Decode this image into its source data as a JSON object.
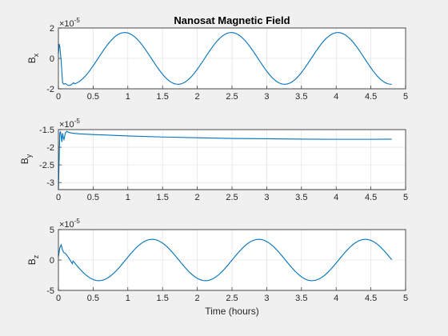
{
  "colors": {
    "background": "#f0f0f0",
    "axes_bg": "#ffffff",
    "line": "#0072bd",
    "grid": "#dcdcdc"
  },
  "chart_data": [
    {
      "type": "line",
      "title": "Nanosat Magnetic Field",
      "ylabel": "B",
      "ylabel_sub": "x",
      "xlabel": "",
      "exponent_label": "×10",
      "exponent": "-5",
      "xlim": [
        0,
        5
      ],
      "ylim": [
        -2,
        2
      ],
      "xticks": [
        "0",
        "0.5",
        "1",
        "1.5",
        "2",
        "2.5",
        "3",
        "3.5",
        "4",
        "4.5",
        "5"
      ],
      "yticks": [
        "2",
        "0",
        "-2"
      ],
      "grid": true,
      "legend": false,
      "transient": {
        "t": [
          0,
          0.01,
          0.02,
          0.04,
          0.06,
          0.08,
          0.1,
          0.14,
          0.18,
          0.22
        ],
        "y": [
          0.3,
          0.95,
          0.8,
          -0.2,
          -1.6,
          -1.7,
          -1.65,
          -1.78,
          -1.75,
          -1.6
        ]
      },
      "oscillation": {
        "amplitude": 1.7,
        "period_hours": 1.535,
        "peak_hours": 0.955,
        "t_start": 0.22,
        "t_end": 4.8
      }
    },
    {
      "type": "line",
      "title": "",
      "ylabel": "B",
      "ylabel_sub": "y",
      "xlabel": "",
      "exponent_label": "×10",
      "exponent": "-5",
      "xlim": [
        0,
        5
      ],
      "ylim": [
        -3.2,
        -1.5
      ],
      "xticks": [
        "0",
        "0.5",
        "1",
        "1.5",
        "2",
        "2.5",
        "3",
        "3.5",
        "4",
        "4.5",
        "5"
      ],
      "yticks": [
        "-1.5",
        "-2",
        "-2.5",
        "-3"
      ],
      "grid": true,
      "legend": false,
      "points": {
        "t": [
          0,
          0.01,
          0.02,
          0.03,
          0.04,
          0.05,
          0.06,
          0.07,
          0.08,
          0.1,
          0.12,
          0.15,
          0.2,
          0.3,
          0.5,
          1.0,
          1.5,
          2.0,
          2.5,
          3.0,
          3.5,
          4.0,
          4.5,
          4.8
        ],
        "y": [
          -3.2,
          -2.4,
          -1.6,
          -1.55,
          -1.7,
          -1.85,
          -1.6,
          -1.72,
          -1.78,
          -1.6,
          -1.55,
          -1.58,
          -1.6,
          -1.62,
          -1.64,
          -1.68,
          -1.71,
          -1.73,
          -1.75,
          -1.76,
          -1.77,
          -1.775,
          -1.775,
          -1.77
        ]
      }
    },
    {
      "type": "line",
      "title": "",
      "ylabel": "B",
      "ylabel_sub": "z",
      "xlabel": "Time (hours)",
      "exponent_label": "×10",
      "exponent": "-5",
      "xlim": [
        0,
        5
      ],
      "ylim": [
        -5,
        5
      ],
      "xticks": [
        "0",
        "0.5",
        "1",
        "1.5",
        "2",
        "2.5",
        "3",
        "3.5",
        "4",
        "4.5",
        "5"
      ],
      "yticks": [
        "5",
        "0",
        "-5"
      ],
      "grid": true,
      "legend": false,
      "transient": {
        "t": [
          0,
          0.02,
          0.04,
          0.06,
          0.08,
          0.1,
          0.14,
          0.2
        ],
        "y": [
          0.5,
          2.0,
          2.5,
          1.6,
          1.2,
          1.1,
          0.5,
          -0.6
        ]
      },
      "oscillation": {
        "amplitude": 3.4,
        "period_hours": 1.535,
        "peak_hours": 1.35,
        "t_start": 0.2,
        "t_end": 4.8
      }
    }
  ]
}
